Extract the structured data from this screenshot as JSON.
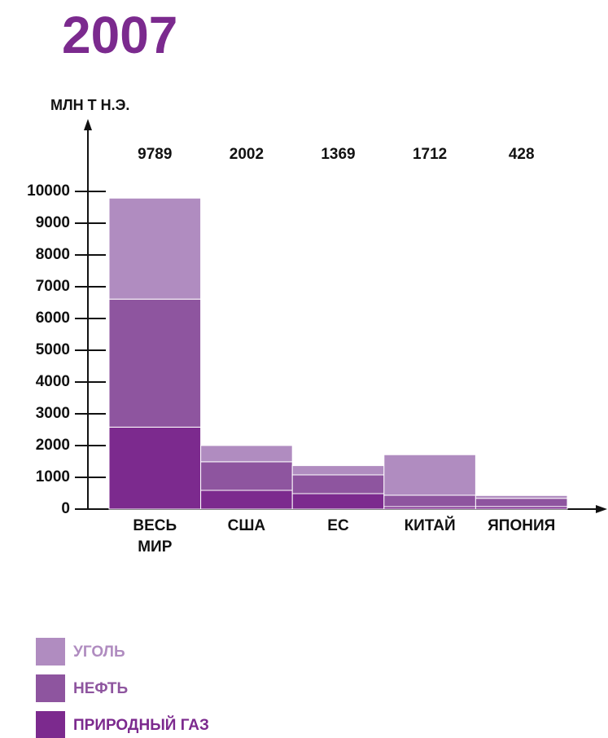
{
  "chart_data": {
    "type": "stacked_bar",
    "title": "2007",
    "y_label": "МЛН Т Н.Э.",
    "categories": [
      "ВЕСЬ МИР",
      "США",
      "ЕС",
      "КИТАЙ",
      "ЯПОНИЯ"
    ],
    "totals": [
      9789,
      2002,
      1369,
      1712,
      428
    ],
    "series": [
      {
        "name": "ПРИРОДНЫЙ ГАЗ",
        "color": "#7c2a8e",
        "values": [
          2580,
          590,
          487,
          77,
          80
        ]
      },
      {
        "name": "НЕФТЬ",
        "color": "#8e559f",
        "values": [
          4030,
          900,
          590,
          360,
          260
        ]
      },
      {
        "name": "УГОЛЬ",
        "color": "#b08cc0",
        "values": [
          3179,
          512,
          292,
          1275,
          88
        ]
      }
    ],
    "ylim": [
      0,
      10000
    ],
    "yticks": [
      0,
      1000,
      2000,
      3000,
      4000,
      5000,
      6000,
      7000,
      8000,
      9000,
      10000
    ]
  }
}
